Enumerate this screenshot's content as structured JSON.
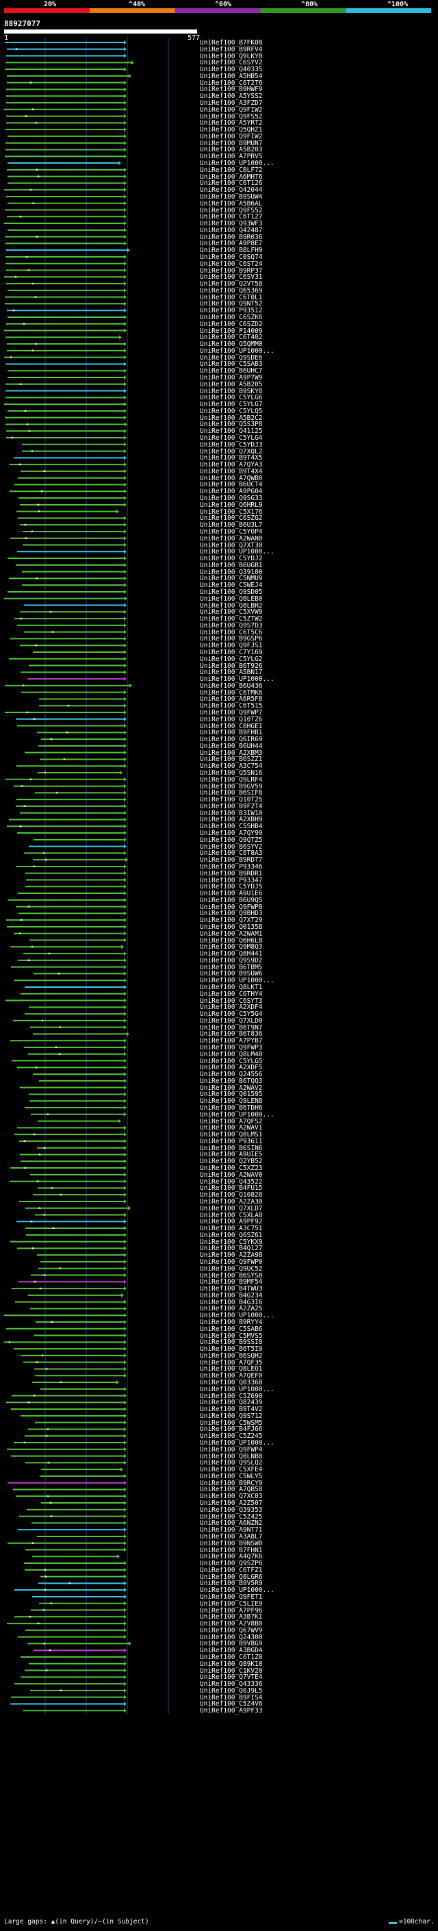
{
  "header": {
    "scale_labels": [
      "20%",
      "^40%",
      "^60%",
      "^80%",
      "^100%"
    ],
    "scale_colors": [
      "#e8121a",
      "#f07a12",
      "#8b2fa8",
      "#2f9a27",
      "#29bde0"
    ],
    "query_id": "88927077",
    "query_start": "1",
    "query_end": "577"
  },
  "legend": {
    "gaps_text": "Large gaps: ▲(in Query)/—(in Subject)",
    "length_text": "=100char."
  },
  "colors": {
    "green": "#54c43a",
    "cyan": "#3ec8e8",
    "magenta": "#c03cd0",
    "grid": "#2a3a8a"
  },
  "hits": [
    "UniRef100_B7FK08",
    "UniRef100_B9RFV4",
    "UniRef100_Q9LKY8",
    "UniRef100_C6SYV2",
    "UniRef100_Q40335",
    "UniRef100_A5HB54",
    "UniRef100_C6T2T6",
    "UniRef100_B9HWF9",
    "UniRef100_A5YSS2",
    "UniRef100_A3FZD7",
    "UniRef100_Q9FIW2",
    "UniRef100_Q9FS52",
    "UniRef100_A5YRT2",
    "UniRef100_Q5QHZ1",
    "UniRef100_Q9FIW2",
    "UniRef100_B9MUN7",
    "UniRef100_A5B203",
    "UniRef100_A7PRV5",
    "UniRef100_UP1000...",
    "UniRef100_C0LF72",
    "UniRef100_A6MHT6",
    "UniRef100_C6T126",
    "UniRef100_Q42044",
    "UniRef100_B9SUW4",
    "UniRef100_A5B6AL",
    "UniRef100_Q9FS52",
    "UniRef100_C6T127",
    "UniRef100_Q93WF3",
    "UniRef100_Q42487",
    "UniRef100_B9R036",
    "UniRef100_A9P8E7",
    "UniRef100_B8LFH9",
    "UniRef100_C0SQ74",
    "UniRef100_C6ST24",
    "UniRef100_B9RP37",
    "UniRef100_C6SV31",
    "UniRef100_Q2VT58",
    "UniRef100_Q65369",
    "UniRef100_C6T0L1",
    "UniRef100_Q9NT52",
    "UniRef100_P93512",
    "UniRef100_C6SZK6",
    "UniRef100_C6SZD2",
    "UniRef100_P14009",
    "UniRef100_C6T402",
    "UniRef100_Q5QMM0",
    "UniRef100_UP1000...",
    "UniRef100_Q9SDE6",
    "UniRef100_C5SAB3",
    "UniRef100_B6UHC7",
    "UniRef100_A9P7W9",
    "UniRef100_A5B205",
    "UniRef100_B9SKY8",
    "UniRef100_C5YLG6",
    "UniRef100_C5YLG7",
    "UniRef100_C5YLQ5",
    "UniRef100_A5B2C2",
    "UniRef100_Q5S3P8",
    "UniRef100_Q41125",
    "UniRef100_C5YLG4",
    "UniRef100_C5YDJ3",
    "UniRef100_Q7XQL2",
    "UniRef100_B9T4X5",
    "UniRef100_A7QYA3",
    "UniRef100_B9T4X4",
    "UniRef100_A7QWB0",
    "UniRef100_B6UCT4",
    "UniRef100_A9PG04",
    "UniRef100_Q9SG33",
    "UniRef100_Q6HRL9",
    "UniRef100_C5X176",
    "UniRef100_C6SZG2",
    "UniRef100_B6U3L7",
    "UniRef100_C5YOP4",
    "UniRef100_A2WAN0",
    "UniRef100_Q7XT30",
    "UniRef100_UP1000...",
    "UniRef100_C5YDJ2",
    "UniRef100_B6UGB1",
    "UniRef100_Q39100",
    "UniRef100_C5NMU9",
    "UniRef100_C5WEJ4",
    "UniRef100_Q9SD05",
    "UniRef100_Q8LEB0",
    "UniRef100_Q8LBH2",
    "UniRef100_C5XVW9",
    "UniRef100_C5ZTW2",
    "UniRef100_Q9S7D3",
    "UniRef100_C6T5C6",
    "UniRef100_B9GSP6",
    "UniRef100_Q9FJS1",
    "UniRef100_C7Y169",
    "UniRef100_C5YLG2",
    "UniRef100_B6T926",
    "UniRef100_A5BN17",
    "UniRef100_UP1000...",
    "UniRef100_B6U436",
    "UniRef100_C6TMK6",
    "UniRef100_A6R5F8",
    "UniRef100_C6T515",
    "UniRef100_Q9FWP7",
    "UniRef100_Q10TZ6",
    "UniRef100_C0HGE1",
    "UniRef100_B9FHB1",
    "UniRef100_Q6IR69",
    "UniRef100_B6UH44",
    "UniRef100_A2XBM3",
    "UniRef100_B6SZZ1",
    "UniRef100_A3C754",
    "UniRef100_Q5SN16",
    "UniRef100_Q9LRF4",
    "UniRef100_B9GV59",
    "UniRef100_B6SIF8",
    "UniRef100_Q10T25",
    "UniRef100_B9F2T4",
    "UniRef100_B3IW10",
    "UniRef100_A2XBH9",
    "UniRef100_C5SHB4",
    "UniRef100_A7QY99",
    "UniRef100_Q9QTZ5",
    "UniRef100_B6SYV2",
    "UniRef100_C6T8A3",
    "UniRef100_B9RDT7",
    "UniRef100_P93346",
    "UniRef100_B9RDR1",
    "UniRef100_P93347",
    "UniRef100_C5YDJ5",
    "UniRef100_A9U1E6",
    "UniRef100_B6U9Q5",
    "UniRef100_Q9FWP8",
    "UniRef100_Q9BHD3",
    "UniRef100_Q7XT29",
    "UniRef100_Q0135B",
    "UniRef100_A2WAM1",
    "UniRef100_Q6H6L8",
    "UniRef100_Q9M8Q3",
    "UniRef100_Q8H441",
    "UniRef100_Q9S9D2",
    "UniRef100_B6TBM5",
    "UniRef100_B9SUW6",
    "UniRef100_UP1000...",
    "UniRef100_Q8LKT1",
    "UniRef100_C6THY4",
    "UniRef100_C6SYT3",
    "UniRef100_A2XDF4",
    "UniRef100_C5Y5G4",
    "UniRef100_Q7XLD0",
    "UniRef100_B6T9N7",
    "UniRef100_B6T836",
    "UniRef100_A7PYB7",
    "UniRef100_Q9FWP3",
    "UniRef100_Q8LM48",
    "UniRef100_C5YLG5",
    "UniRef100_A2XDF5",
    "UniRef100_Q24556",
    "UniRef100_B6TQQ3",
    "UniRef100_A2WAV2",
    "UniRef100_Q01595",
    "UniRef100_Q9LEN8",
    "UniRef100_B6TDH6",
    "UniRef100_UP1000...",
    "UniRef100_A7QFS2",
    "UniRef100_A2WAV1",
    "UniRef100_Q8LMS1",
    "UniRef100_P93611",
    "UniRef100_B6SIN6",
    "UniRef100_A9UIE5",
    "UniRef100_Q2YB52",
    "UniRef100_C5XZ23",
    "UniRef100_A2WAV0",
    "UniRef100_Q43522",
    "UniRef100_B4FU15",
    "UniRef100_Q10828",
    "UniRef100_A2ZA30",
    "UniRef100_Q7XLD7",
    "UniRef100_C5XLA8",
    "UniRef100_A9PF92",
    "UniRef100_A3C751",
    "UniRef100_Q6SZ61",
    "UniRef100_C5YKX9",
    "UniRef100_B4Q127",
    "UniRef100_A2ZA98",
    "UniRef100_Q9FWP0",
    "UniRef100_Q9UC52",
    "UniRef100_B6SYS8",
    "UniRef100_B9MF54",
    "UniRef100_B4TWU3",
    "UniRef100_B4G234",
    "UniRef100_B4G3I6",
    "UniRef100_A2ZA25",
    "UniRef100_UP1000...",
    "UniRef100_B9RYY4",
    "UniRef100_C5SAB6",
    "UniRef100_C5MVS5",
    "UniRef100_B9SSI8",
    "UniRef100_B6T5I9",
    "UniRef100_B6SQH2",
    "UniRef100_A7QF35",
    "UniRef100_Q8LEO1",
    "UniRef100_A7QEF0",
    "UniRef100_Q03368",
    "UniRef100_UP1000...",
    "UniRef100_C5Z690",
    "UniRef100_Q82439",
    "UniRef100_B9T4V2",
    "UniRef100_Q9S712",
    "UniRef100_C5WSM5",
    "UniRef100_B4FJ66",
    "UniRef100_C5Z245",
    "UniRef100_UP1000...",
    "UniRef100_Q9FWP4",
    "UniRef100_Q8LNB8",
    "UniRef100_Q9SLQ2",
    "UniRef100_C5XFE4",
    "UniRef100_C5WLY5",
    "UniRef100_B9RCY9",
    "UniRef100_A7QB58",
    "UniRef100_Q7XC03",
    "UniRef100_A2Z507",
    "UniRef100_Q39353",
    "UniRef100_C5Z425",
    "UniRef100_A6NZN2",
    "UniRef100_A9NT71",
    "UniRef100_A3A8L7",
    "UniRef100_B9NSW0",
    "UniRef100_B7FHN1",
    "UniRef100_A4Q7K6",
    "UniRef100_Q9SZP6",
    "UniRef100_C6TFZ1",
    "UniRef100_Q8LGR6",
    "UniRef100_B9V5R9",
    "UniRef100_UP1000...",
    "UniRef100_Q9FET1",
    "UniRef100_C5LIE9",
    "UniRef100_A7PF96",
    "UniRef100_A3B7K1",
    "UniRef100_A2V8B0",
    "UniRef100_Q67WV9",
    "UniRef100_Q24300",
    "UniRef100_B9V8G9",
    "UniRef100_A3BGD4",
    "UniRef100_C6T1Z0",
    "UniRef100_Q89K10",
    "UniRef100_C1KV20",
    "UniRef100_Q7VTE4",
    "UniRef100_Q43336",
    "UniRef100_Q0J9L5",
    "UniRef100_B9FIS4",
    "UniRef100_C5Z4V6",
    "UniRef100_A9PF33"
  ]
}
